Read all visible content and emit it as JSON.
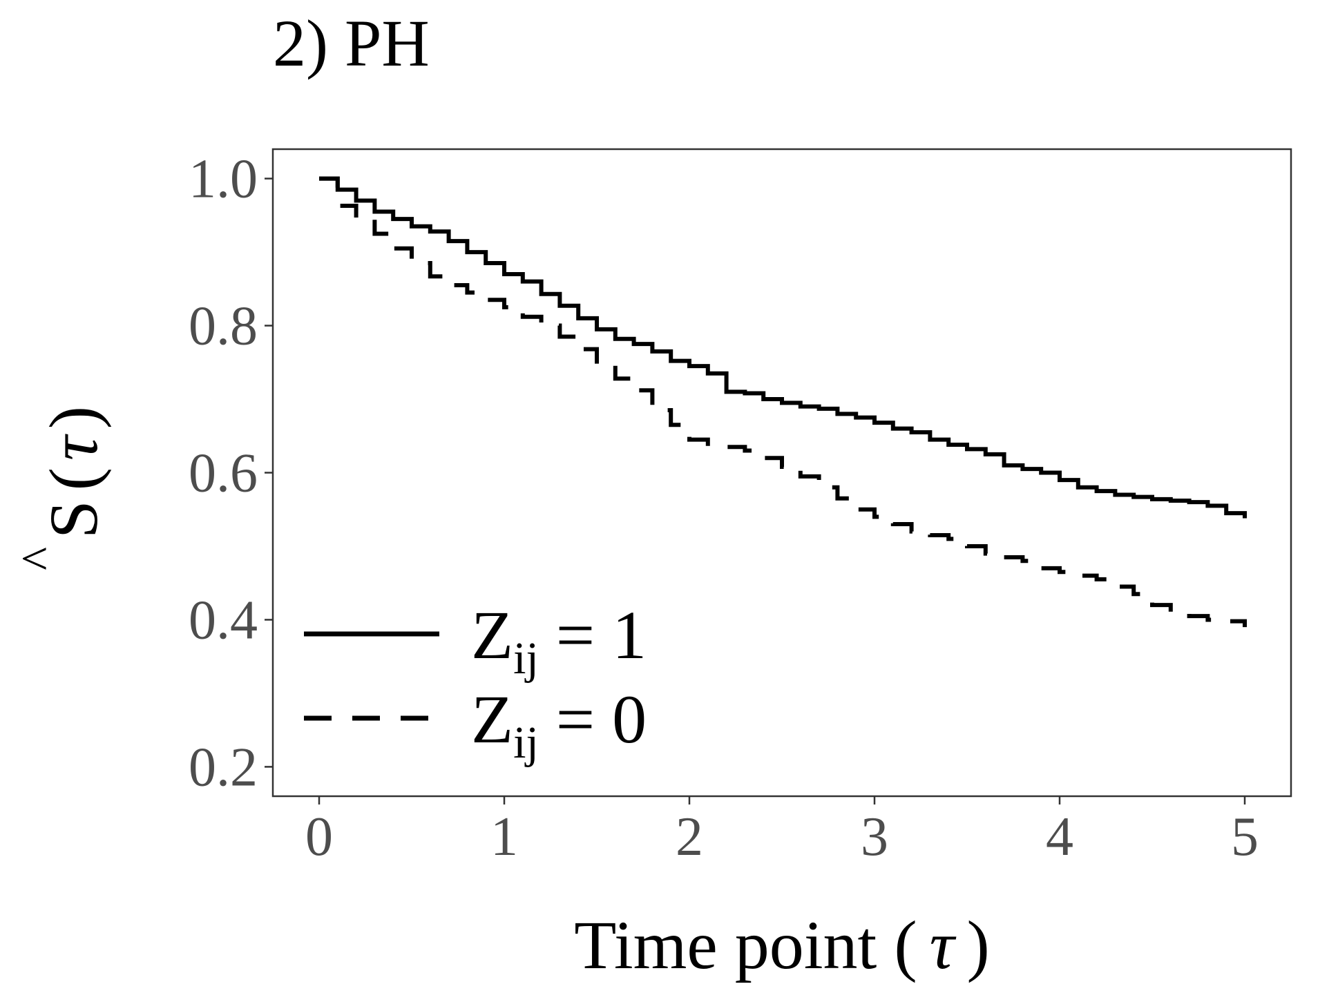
{
  "chart_data": {
    "type": "line",
    "title": "2) PH",
    "xlabel": {
      "main": "Time point (",
      "symbol": "τ",
      "close": ")"
    },
    "ylabel": {
      "main": "S",
      "hat": "^",
      "open": "(",
      "symbol": "τ",
      "close": ")"
    },
    "xlim": [
      -0.25,
      5.25
    ],
    "ylim": [
      0.16,
      1.04
    ],
    "x_ticks": [
      0,
      1,
      2,
      3,
      4,
      5
    ],
    "x_tick_labels": [
      "0",
      "1",
      "2",
      "3",
      "4",
      "5"
    ],
    "y_ticks": [
      0.2,
      0.4,
      0.6,
      0.8,
      1.0
    ],
    "y_tick_labels": [
      "0.2",
      "0.4",
      "0.6",
      "0.8",
      "1.0"
    ],
    "grid": false,
    "legend_position": "bottom-left",
    "line_color": "#000000",
    "series": [
      {
        "name": {
          "base": "Z",
          "sub": "ij",
          "rest": " = 1"
        },
        "style": "solid",
        "x": [
          0,
          0.1,
          0.2,
          0.3,
          0.4,
          0.5,
          0.6,
          0.7,
          0.8,
          0.9,
          1.0,
          1.1,
          1.2,
          1.3,
          1.4,
          1.5,
          1.6,
          1.7,
          1.8,
          1.9,
          2.0,
          2.1,
          2.2,
          2.3,
          2.4,
          2.5,
          2.6,
          2.7,
          2.8,
          2.9,
          3.0,
          3.1,
          3.2,
          3.3,
          3.4,
          3.5,
          3.6,
          3.7,
          3.8,
          3.9,
          4.0,
          4.1,
          4.2,
          4.3,
          4.4,
          4.5,
          4.6,
          4.7,
          4.8,
          4.9,
          5.0
        ],
        "y": [
          1.0,
          0.985,
          0.97,
          0.955,
          0.945,
          0.935,
          0.928,
          0.915,
          0.9,
          0.885,
          0.87,
          0.86,
          0.843,
          0.827,
          0.81,
          0.795,
          0.782,
          0.775,
          0.765,
          0.752,
          0.745,
          0.735,
          0.71,
          0.708,
          0.7,
          0.695,
          0.69,
          0.687,
          0.68,
          0.675,
          0.668,
          0.66,
          0.655,
          0.645,
          0.638,
          0.632,
          0.625,
          0.61,
          0.605,
          0.6,
          0.59,
          0.58,
          0.575,
          0.57,
          0.567,
          0.564,
          0.562,
          0.56,
          0.555,
          0.545,
          0.538
        ]
      },
      {
        "name": {
          "base": "Z",
          "sub": "ij",
          "rest": " = 0"
        },
        "style": "dashed",
        "x": [
          0,
          0.1,
          0.2,
          0.3,
          0.4,
          0.5,
          0.6,
          0.7,
          0.8,
          0.9,
          1.0,
          1.1,
          1.2,
          1.3,
          1.4,
          1.5,
          1.6,
          1.7,
          1.8,
          1.9,
          2.0,
          2.1,
          2.2,
          2.3,
          2.4,
          2.5,
          2.6,
          2.7,
          2.8,
          2.9,
          3.0,
          3.1,
          3.2,
          3.3,
          3.4,
          3.5,
          3.6,
          3.7,
          3.8,
          3.9,
          4.0,
          4.1,
          4.2,
          4.3,
          4.4,
          4.5,
          4.6,
          4.7,
          4.8,
          4.9,
          5.0
        ],
        "y": [
          1.0,
          0.963,
          0.945,
          0.925,
          0.905,
          0.885,
          0.867,
          0.855,
          0.845,
          0.835,
          0.825,
          0.812,
          0.8,
          0.785,
          0.768,
          0.748,
          0.728,
          0.712,
          0.685,
          0.665,
          0.645,
          0.635,
          0.635,
          0.63,
          0.62,
          0.608,
          0.595,
          0.58,
          0.565,
          0.55,
          0.54,
          0.53,
          0.52,
          0.515,
          0.51,
          0.5,
          0.49,
          0.485,
          0.48,
          0.47,
          0.465,
          0.46,
          0.455,
          0.445,
          0.435,
          0.42,
          0.41,
          0.405,
          0.4,
          0.398,
          0.39
        ]
      }
    ]
  }
}
